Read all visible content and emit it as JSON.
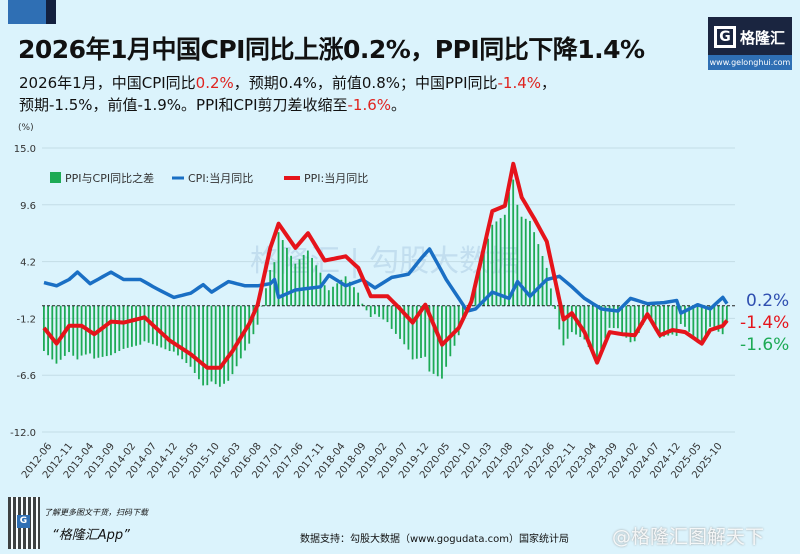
{
  "header": {
    "title": "2026年1月中国CPI同比上涨0.2%，PPI同比下降1.4%",
    "sub1_a": "2026年1月，中国CPI同比",
    "sub1_b": "0.2%",
    "sub1_c": "，预期0.4%，前值0.8%；中国PPI同比",
    "sub1_d": "-1.4%",
    "sub1_e": "，",
    "sub2_a": "预期-1.5%，前值-1.9%。PPI和CPI剪刀差收缩至",
    "sub2_b": "-1.6%",
    "sub2_c": "。"
  },
  "logo": {
    "name": "格隆汇",
    "letter": "G",
    "url": "www.gelonghui.com"
  },
  "watermark": "格隆汇 | 勾股大数据",
  "footer": {
    "tip": "了解更多图文干货，扫码下载",
    "app": "“格隆汇App”",
    "source": "数据支持：勾股大数据（www.gogudata.com）国家统计局",
    "weibo": "@格隆汇图解天下"
  },
  "colors": {
    "cpi": "#1a6fc4",
    "ppi": "#e5141b",
    "diff": "#1daa55",
    "end_cpi": "#2f4fb0"
  },
  "chart_data": {
    "type": "bar+line",
    "unit_label": "(%)",
    "ylim": [
      -12.0,
      15.0
    ],
    "yticks": [
      "15.0",
      "9.6",
      "4.2",
      "-1.2",
      "-6.6",
      "-12.0"
    ],
    "xticks": [
      "2012-06",
      "2012-11",
      "2013-04",
      "2013-09",
      "2014-02",
      "2014-07",
      "2014-12",
      "2015-05",
      "2015-10",
      "2016-03",
      "2016-08",
      "2017-01",
      "2017-06",
      "2017-11",
      "2018-04",
      "2018-09",
      "2019-02",
      "2019-07",
      "2019-12",
      "2020-05",
      "2020-10",
      "2021-03",
      "2021-08",
      "2022-01",
      "2022-06",
      "2022-11",
      "2023-04",
      "2023-09",
      "2024-02",
      "2024-07",
      "2024-12",
      "2025-05",
      "2025-10"
    ],
    "x_range": [
      "2012-06",
      "2026-01"
    ],
    "legend": [
      "PPI与CPI同比之差",
      "CPI:当月同比",
      "PPI:当月同比"
    ],
    "legend_position": "top-left",
    "series": [
      {
        "name": "CPI:当月同比",
        "points": [
          [
            "2012-06",
            2.2
          ],
          [
            "2012-09",
            1.9
          ],
          [
            "2012-12",
            2.5
          ],
          [
            "2013-02",
            3.2
          ],
          [
            "2013-05",
            2.1
          ],
          [
            "2013-10",
            3.2
          ],
          [
            "2014-01",
            2.5
          ],
          [
            "2014-05",
            2.5
          ],
          [
            "2014-09",
            1.6
          ],
          [
            "2015-01",
            0.8
          ],
          [
            "2015-05",
            1.2
          ],
          [
            "2015-08",
            2.0
          ],
          [
            "2015-10",
            1.3
          ],
          [
            "2016-02",
            2.3
          ],
          [
            "2016-06",
            1.9
          ],
          [
            "2016-09",
            1.9
          ],
          [
            "2016-12",
            2.1
          ],
          [
            "2017-01",
            2.5
          ],
          [
            "2017-02",
            0.8
          ],
          [
            "2017-06",
            1.5
          ],
          [
            "2017-12",
            1.8
          ],
          [
            "2018-02",
            2.9
          ],
          [
            "2018-06",
            1.9
          ],
          [
            "2018-10",
            2.5
          ],
          [
            "2019-01",
            1.7
          ],
          [
            "2019-05",
            2.7
          ],
          [
            "2019-09",
            3.0
          ],
          [
            "2019-12",
            4.5
          ],
          [
            "2020-02",
            5.4
          ],
          [
            "2020-06",
            2.5
          ],
          [
            "2020-11",
            -0.5
          ],
          [
            "2021-01",
            -0.3
          ],
          [
            "2021-05",
            1.3
          ],
          [
            "2021-09",
            0.7
          ],
          [
            "2021-11",
            2.3
          ],
          [
            "2022-02",
            0.9
          ],
          [
            "2022-06",
            2.5
          ],
          [
            "2022-09",
            2.8
          ],
          [
            "2022-12",
            1.8
          ],
          [
            "2023-03",
            0.7
          ],
          [
            "2023-07",
            -0.3
          ],
          [
            "2023-11",
            -0.5
          ],
          [
            "2024-02",
            0.7
          ],
          [
            "2024-06",
            0.2
          ],
          [
            "2024-10",
            0.3
          ],
          [
            "2025-01",
            0.5
          ],
          [
            "2025-02",
            -0.7
          ],
          [
            "2025-06",
            0.1
          ],
          [
            "2025-09",
            -0.3
          ],
          [
            "2025-12",
            0.8
          ],
          [
            "2026-01",
            0.2
          ]
        ]
      },
      {
        "name": "PPI:当月同比",
        "points": [
          [
            "2012-06",
            -2.1
          ],
          [
            "2012-09",
            -3.6
          ],
          [
            "2012-12",
            -1.9
          ],
          [
            "2013-03",
            -1.9
          ],
          [
            "2013-06",
            -2.7
          ],
          [
            "2013-10",
            -1.5
          ],
          [
            "2014-01",
            -1.6
          ],
          [
            "2014-06",
            -1.1
          ],
          [
            "2014-12",
            -3.3
          ],
          [
            "2015-05",
            -4.6
          ],
          [
            "2015-09",
            -5.9
          ],
          [
            "2015-12",
            -5.9
          ],
          [
            "2016-03",
            -4.3
          ],
          [
            "2016-07",
            -1.7
          ],
          [
            "2016-09",
            0.1
          ],
          [
            "2016-12",
            5.5
          ],
          [
            "2017-02",
            7.8
          ],
          [
            "2017-06",
            5.5
          ],
          [
            "2017-09",
            6.9
          ],
          [
            "2018-01",
            4.3
          ],
          [
            "2018-06",
            4.7
          ],
          [
            "2018-09",
            3.6
          ],
          [
            "2018-12",
            0.9
          ],
          [
            "2019-04",
            0.9
          ],
          [
            "2019-07",
            -0.3
          ],
          [
            "2019-10",
            -1.6
          ],
          [
            "2020-01",
            0.1
          ],
          [
            "2020-05",
            -3.7
          ],
          [
            "2020-09",
            -2.1
          ],
          [
            "2020-12",
            0.4
          ],
          [
            "2021-05",
            9.0
          ],
          [
            "2021-08",
            9.5
          ],
          [
            "2021-10",
            13.5
          ],
          [
            "2021-12",
            10.3
          ],
          [
            "2022-03",
            8.3
          ],
          [
            "2022-06",
            6.1
          ],
          [
            "2022-10",
            -1.3
          ],
          [
            "2022-12",
            -0.7
          ],
          [
            "2023-03",
            -2.5
          ],
          [
            "2023-06",
            -5.4
          ],
          [
            "2023-09",
            -2.5
          ],
          [
            "2023-12",
            -2.7
          ],
          [
            "2024-03",
            -2.8
          ],
          [
            "2024-06",
            -0.8
          ],
          [
            "2024-09",
            -2.8
          ],
          [
            "2024-12",
            -2.3
          ],
          [
            "2025-03",
            -2.5
          ],
          [
            "2025-07",
            -3.6
          ],
          [
            "2025-09",
            -2.3
          ],
          [
            "2025-12",
            -1.9
          ],
          [
            "2026-01",
            -1.4
          ]
        ]
      }
    ],
    "bar_series": {
      "name": "PPI与CPI同比之差",
      "formula": "PPI - CPI"
    },
    "end_labels": {
      "cpi": "0.2%",
      "ppi": "-1.4%",
      "diff": "-1.6%"
    }
  }
}
